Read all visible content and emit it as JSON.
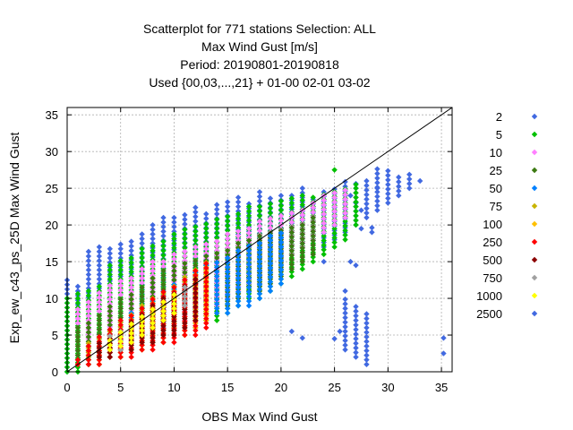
{
  "chart_data": {
    "type": "scatter",
    "title_lines": [
      "Scatterplot for  771 stations Selection: ALL",
      "Max Wind Gust [m/s]",
      "Period: 20190801-20190818",
      "Used {00,03,...,21} + 01-00 02-01 03-02"
    ],
    "xlabel": "OBS Max Wind Gust",
    "ylabel": "Exp_ew_c43_ps_25D Max Wind Gust",
    "xlim": [
      0,
      36
    ],
    "ylim": [
      0,
      36
    ],
    "x_ticks": [
      0,
      5,
      10,
      15,
      20,
      25,
      30,
      35
    ],
    "y_ticks": [
      0,
      5,
      10,
      15,
      20,
      25,
      30,
      35
    ],
    "grid": true,
    "diagonal_line": true,
    "legend_placement": "right",
    "legend": [
      {
        "label": "2",
        "color": "#4169e1"
      },
      {
        "label": "5",
        "color": "#00c000"
      },
      {
        "label": "10",
        "color": "#ff80ff"
      },
      {
        "label": "25",
        "color": "#3c7a12"
      },
      {
        "label": "50",
        "color": "#0080ff"
      },
      {
        "label": "75",
        "color": "#c8b400"
      },
      {
        "label": "100",
        "color": "#ffc000"
      },
      {
        "label": "250",
        "color": "#ff0000"
      },
      {
        "label": "500",
        "color": "#8b0000"
      },
      {
        "label": "750",
        "color": "#a0a0a0"
      },
      {
        "label": "1000",
        "color": "#ffff00"
      },
      {
        "label": "2500",
        "color": "#4169e1"
      }
    ],
    "series": [
      {
        "name": "2",
        "color": "#4169e1",
        "columns": [
          [
            0,
            0,
            13
          ],
          [
            1,
            1,
            12
          ],
          [
            2,
            2,
            16.5
          ],
          [
            3,
            2,
            17
          ],
          [
            4,
            3,
            17
          ],
          [
            5,
            3,
            17.5
          ],
          [
            6,
            4,
            18
          ],
          [
            7,
            5,
            19
          ],
          [
            8,
            5,
            20
          ],
          [
            9,
            6,
            21
          ],
          [
            10,
            6,
            21
          ],
          [
            11,
            7,
            21.5
          ],
          [
            12,
            8,
            22.5
          ],
          [
            13,
            9,
            22
          ],
          [
            14,
            9,
            23
          ],
          [
            15,
            10,
            23.5
          ],
          [
            16,
            10,
            24
          ],
          [
            17,
            11,
            23
          ],
          [
            18,
            12,
            24.5
          ],
          [
            19,
            13,
            24
          ],
          [
            20,
            14,
            24
          ],
          [
            21,
            14,
            24.5
          ],
          [
            22,
            15,
            25
          ],
          [
            23,
            16,
            24
          ],
          [
            24,
            17,
            25
          ],
          [
            25,
            18,
            25
          ],
          [
            26,
            19,
            26
          ],
          [
            27,
            20,
            26
          ],
          [
            28,
            21,
            26
          ],
          [
            29,
            22,
            28
          ],
          [
            30,
            23,
            27.5
          ],
          [
            31,
            24,
            27
          ],
          [
            32,
            25,
            27
          ],
          [
            33,
            26,
            26
          ],
          [
            26,
            3,
            10
          ],
          [
            27,
            2,
            9
          ],
          [
            28,
            1,
            8
          ],
          [
            28.5,
            19,
            20
          ],
          [
            29,
            25,
            25.5
          ]
        ],
        "points": [
          [
            35.2,
            4.6
          ],
          [
            35.2,
            2.5
          ],
          [
            27.5,
            19.5
          ],
          [
            26.5,
            15
          ],
          [
            26,
            11
          ],
          [
            25,
            4.5
          ],
          [
            25.5,
            5.5
          ],
          [
            22,
            4.6
          ],
          [
            21,
            5.5
          ],
          [
            24,
            15
          ],
          [
            27,
            14.5
          ],
          [
            27.5,
            22
          ],
          [
            27,
            23
          ],
          [
            26.5,
            24
          ]
        ]
      },
      {
        "name": "5",
        "color": "#00c000",
        "columns": [
          [
            0,
            0,
            10
          ],
          [
            1,
            0,
            11
          ],
          [
            2,
            1,
            11.5
          ],
          [
            3,
            1,
            12
          ],
          [
            4,
            2,
            15
          ],
          [
            5,
            2,
            15.5
          ],
          [
            6,
            3,
            16
          ],
          [
            7,
            3,
            17
          ],
          [
            8,
            4,
            17.5
          ],
          [
            9,
            4,
            18
          ],
          [
            10,
            5,
            19
          ],
          [
            11,
            5,
            19.5
          ],
          [
            12,
            6,
            20
          ],
          [
            13,
            7,
            20.5
          ],
          [
            14,
            7,
            21
          ],
          [
            15,
            8,
            21.5
          ],
          [
            16,
            9,
            22
          ],
          [
            17,
            10,
            22.5
          ],
          [
            18,
            10,
            23
          ],
          [
            19,
            11,
            23
          ],
          [
            20,
            12,
            23.5
          ],
          [
            21,
            13,
            24
          ],
          [
            22,
            14,
            24
          ],
          [
            23,
            15,
            24
          ],
          [
            24,
            16,
            24.5
          ],
          [
            25,
            17,
            24.5
          ],
          [
            26,
            18,
            25
          ],
          [
            27,
            20,
            25
          ]
        ],
        "points": [
          [
            25,
            27.5
          ],
          [
            27,
            25.5
          ]
        ]
      },
      {
        "name": "10",
        "color": "#ff80ff",
        "columns": [
          [
            1,
            1,
            9
          ],
          [
            2,
            2,
            10
          ],
          [
            3,
            2,
            11
          ],
          [
            4,
            3,
            12
          ],
          [
            5,
            3,
            12.5
          ],
          [
            6,
            4,
            13
          ],
          [
            7,
            4,
            14
          ],
          [
            8,
            5,
            15
          ],
          [
            9,
            5,
            15.5
          ],
          [
            10,
            6,
            16
          ],
          [
            11,
            7,
            16.5
          ],
          [
            12,
            7,
            17
          ],
          [
            13,
            8,
            17.5
          ],
          [
            14,
            9,
            18
          ],
          [
            15,
            10,
            19
          ],
          [
            16,
            11,
            19.5
          ],
          [
            17,
            12,
            20
          ],
          [
            18,
            13,
            20.5
          ],
          [
            19,
            14,
            21
          ],
          [
            20,
            15,
            21.5
          ],
          [
            21,
            16,
            22
          ],
          [
            22,
            17,
            22.5
          ],
          [
            23,
            18,
            23
          ],
          [
            24,
            19,
            24
          ],
          [
            25,
            20,
            24.5
          ],
          [
            26,
            21,
            25
          ]
        ],
        "points": []
      },
      {
        "name": "25",
        "color": "#3c7a12",
        "columns": [
          [
            1,
            1,
            6
          ],
          [
            2,
            1,
            7
          ],
          [
            3,
            2,
            8
          ],
          [
            4,
            2,
            9
          ],
          [
            5,
            3,
            10
          ],
          [
            6,
            3,
            11
          ],
          [
            7,
            4,
            12
          ],
          [
            8,
            4,
            13
          ],
          [
            9,
            5,
            14
          ],
          [
            10,
            5,
            14.5
          ],
          [
            11,
            6,
            15
          ],
          [
            12,
            7,
            15.5
          ],
          [
            13,
            7,
            16
          ],
          [
            14,
            8,
            16.5
          ],
          [
            15,
            9,
            17
          ],
          [
            16,
            10,
            17.5
          ],
          [
            17,
            11,
            18
          ],
          [
            18,
            11,
            18.5
          ],
          [
            19,
            12,
            19
          ],
          [
            20,
            13,
            19.5
          ],
          [
            21,
            14,
            20
          ],
          [
            22,
            15,
            20.5
          ],
          [
            23,
            16,
            21
          ]
        ],
        "points": []
      },
      {
        "name": "50",
        "color": "#0080ff",
        "columns": [
          [
            2,
            1,
            4
          ],
          [
            3,
            2,
            5
          ],
          [
            4,
            2,
            6
          ],
          [
            5,
            3,
            7
          ],
          [
            6,
            3,
            8
          ],
          [
            7,
            4,
            9
          ],
          [
            8,
            4,
            10
          ],
          [
            9,
            5,
            11
          ],
          [
            10,
            5,
            12
          ],
          [
            11,
            6,
            13
          ],
          [
            12,
            6,
            14
          ],
          [
            13,
            7,
            14.5
          ],
          [
            14,
            8,
            15
          ],
          [
            15,
            8,
            16
          ],
          [
            16,
            9,
            17
          ],
          [
            17,
            9,
            17.5
          ],
          [
            18,
            10,
            18
          ],
          [
            19,
            11,
            18.5
          ],
          [
            20,
            12,
            19
          ]
        ],
        "points": []
      },
      {
        "name": "75",
        "color": "#c8b400",
        "columns": [
          [
            2,
            2,
            4
          ],
          [
            3,
            2,
            5
          ],
          [
            4,
            3,
            6
          ],
          [
            5,
            3,
            7
          ],
          [
            6,
            4,
            8
          ],
          [
            7,
            4,
            9
          ],
          [
            8,
            5,
            10
          ],
          [
            9,
            5,
            11
          ],
          [
            10,
            6,
            12
          ],
          [
            11,
            6,
            13
          ],
          [
            12,
            7,
            14
          ],
          [
            13,
            8,
            15
          ]
        ],
        "points": []
      },
      {
        "name": "100",
        "color": "#ffc000",
        "columns": [
          [
            2,
            1,
            3
          ],
          [
            3,
            1,
            4
          ],
          [
            4,
            2,
            5
          ],
          [
            5,
            2,
            6
          ],
          [
            6,
            3,
            7
          ],
          [
            7,
            3,
            8
          ],
          [
            8,
            4,
            9
          ],
          [
            9,
            4,
            10
          ],
          [
            10,
            5,
            11
          ],
          [
            11,
            5,
            12
          ],
          [
            12,
            6,
            13
          ],
          [
            13,
            7,
            14
          ]
        ],
        "points": []
      },
      {
        "name": "250",
        "color": "#ff0000",
        "columns": [
          [
            1,
            1,
            2
          ],
          [
            2,
            1,
            3.5
          ],
          [
            3,
            1,
            5
          ],
          [
            4,
            2,
            6
          ],
          [
            5,
            2,
            7
          ],
          [
            6,
            2,
            8
          ],
          [
            7,
            3,
            9
          ],
          [
            8,
            3,
            10
          ],
          [
            9,
            4,
            11
          ],
          [
            10,
            4,
            12
          ],
          [
            11,
            5,
            13
          ],
          [
            12,
            5,
            14
          ],
          [
            13,
            6,
            15
          ]
        ],
        "points": []
      },
      {
        "name": "500",
        "color": "#8b0000",
        "columns": [
          [
            3,
            2,
            4
          ],
          [
            4,
            2,
            5
          ],
          [
            5,
            3,
            6
          ],
          [
            6,
            3,
            7
          ],
          [
            7,
            4,
            8
          ],
          [
            8,
            4,
            9
          ],
          [
            9,
            5,
            10
          ],
          [
            10,
            5,
            11
          ],
          [
            11,
            6,
            12
          ],
          [
            12,
            7,
            13
          ]
        ],
        "points": []
      },
      {
        "name": "750",
        "color": "#a0a0a0",
        "columns": [
          [
            4,
            3,
            5
          ],
          [
            5,
            3,
            6
          ],
          [
            6,
            4,
            7
          ],
          [
            7,
            5,
            8
          ],
          [
            8,
            6,
            9
          ],
          [
            9,
            7,
            10
          ],
          [
            10,
            8,
            11
          ],
          [
            11,
            9,
            12
          ]
        ],
        "points": []
      },
      {
        "name": "1000",
        "color": "#ffff00",
        "columns": [
          [
            4,
            3,
            4.5
          ],
          [
            5,
            3.5,
            5.5
          ],
          [
            6,
            4,
            6.5
          ],
          [
            7,
            5,
            7.5
          ],
          [
            8,
            6,
            8.5
          ],
          [
            9,
            7,
            9.5
          ],
          [
            10,
            8,
            10.5
          ]
        ],
        "points": []
      }
    ]
  }
}
